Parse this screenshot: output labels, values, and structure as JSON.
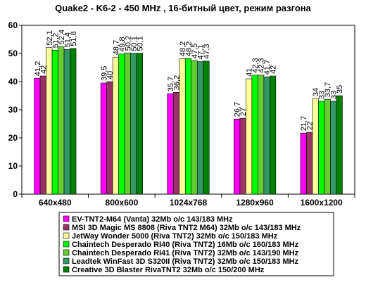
{
  "chart_data": {
    "type": "bar",
    "title": "Quake2 - K6-2 - 450 MHz ,  16-битный цвет, режим разгона",
    "categories": [
      "640x480",
      "800x600",
      "1024x768",
      "1280x960",
      "1600x1200"
    ],
    "ylim": [
      0,
      60
    ],
    "yticks": [
      "0",
      "10",
      "20",
      "30",
      "40",
      "50",
      "60"
    ],
    "grid": true,
    "legend_position": "bottom",
    "series": [
      {
        "name": "EV-TNT2-M64 (Vanta) 32Mb o/c 143/183 MHz",
        "color": "#ff00ff",
        "values": [
          41.2,
          39.5,
          35.7,
          26.7,
          21.7
        ],
        "labels": [
          "41,2",
          "39,5",
          "35,7",
          "26,7",
          "21,7"
        ]
      },
      {
        "name": "MSI 3D Magic MS 8808 (Riva TNT2 M64) 32Mb o/c 143/183 MHz",
        "color": "#993366",
        "values": [
          42,
          40,
          36.2,
          27,
          22
        ],
        "labels": [
          "42",
          "40",
          "36,2",
          "27",
          "22"
        ]
      },
      {
        "name": "JetWay Wonder 5000 (Riva TNT2) 32Mb o/c 150/183 MHz",
        "color": "#ffff99",
        "values": [
          52.1,
          48.7,
          48.2,
          41,
          34
        ],
        "labels": [
          "52,1",
          "48,7",
          "48,2",
          "41",
          "34"
        ]
      },
      {
        "name": "Chaintech Desperado RI40 (Riva TNT2) 16Mb o/c 160/183 MHz",
        "color": "#00ff00",
        "values": [
          51.2,
          49.8,
          48.2,
          42.3,
          33
        ],
        "labels": [
          "51,2",
          "49,8",
          "48,2",
          "42,3",
          "33"
        ]
      },
      {
        "name": "Chaintech Desperado RI41 (Riva TNT2) 32Mb o/c 143/190 MHz",
        "color": "#66cc33",
        "values": [
          52.4,
          50.2,
          47.5,
          42.3,
          33.7
        ],
        "labels": [
          "52,4",
          "50,2",
          "47,5",
          "42,3",
          "33,7"
        ]
      },
      {
        "name": "Leadtek WinFast 3D S320II (Riva TNT2) 32Mb o/c 150/183 MHz",
        "color": "#339966",
        "values": [
          51.4,
          50.1,
          47.1,
          41.7,
          33
        ],
        "labels": [
          "51,4",
          "50,1",
          "47,1",
          "41,7",
          "33"
        ]
      },
      {
        "name": "Creative 3D Blaster RivaTNT2 32Mb o/c 150/200 MHz",
        "color": "#008000",
        "values": [
          51.8,
          50.1,
          47.3,
          42,
          35
        ],
        "labels": [
          "51,8",
          "50,1",
          "47,3",
          "42",
          "35"
        ]
      }
    ]
  }
}
